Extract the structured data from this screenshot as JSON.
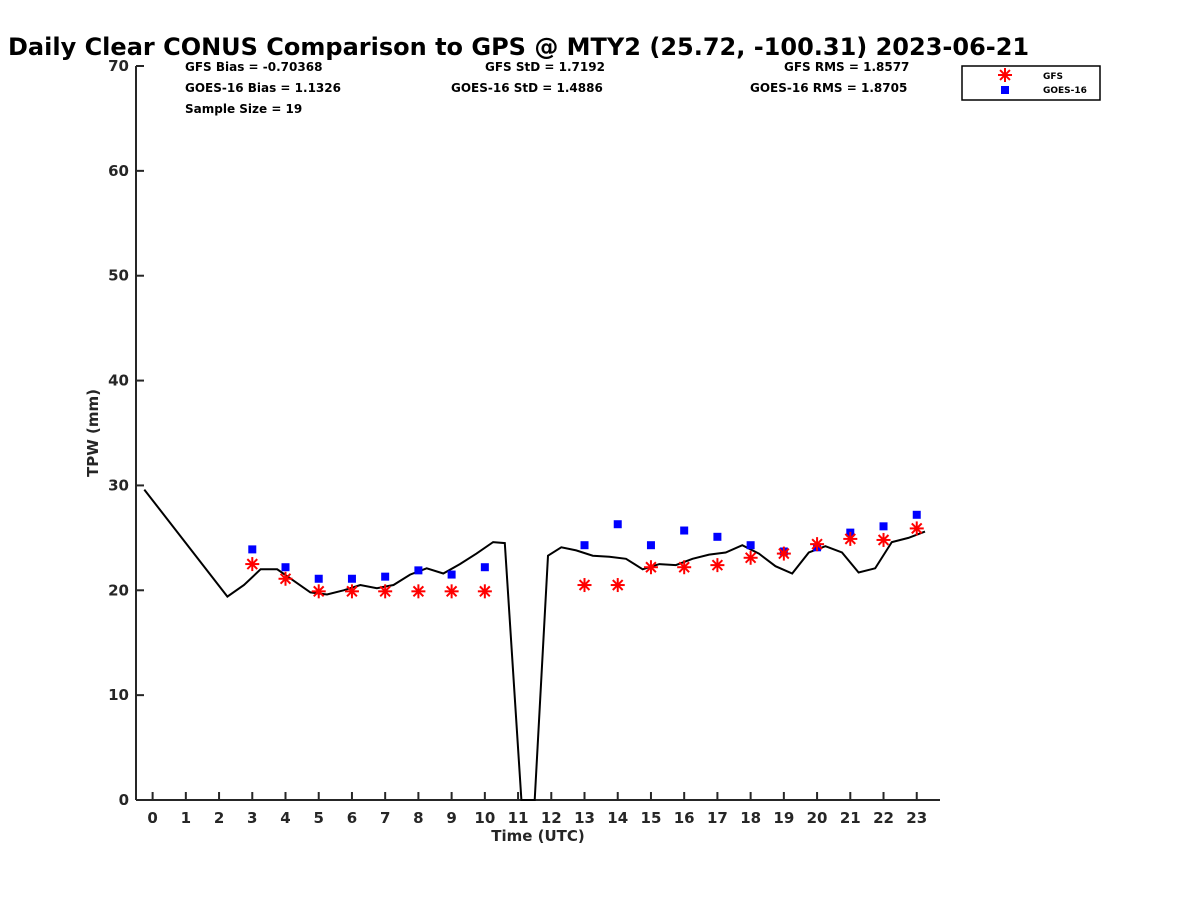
{
  "chart_data": {
    "type": "scatter",
    "title": "Daily Clear CONUS Comparison to GPS @ MTY2 (25.72, -100.31) 2023-06-21",
    "xlabel": "Time (UTC)",
    "ylabel": "TPW (mm)",
    "xlim": [
      -0.5,
      23.7
    ],
    "ylim": [
      0,
      70
    ],
    "x_ticks": [
      0,
      1,
      2,
      3,
      4,
      5,
      6,
      7,
      8,
      9,
      10,
      11,
      12,
      13,
      14,
      15,
      16,
      17,
      18,
      19,
      20,
      21,
      22,
      23
    ],
    "x_tick_labels": [
      "0",
      "1",
      "2",
      "3",
      "4",
      "5",
      "6",
      "7",
      "8",
      "9",
      "10",
      "11",
      "12",
      "13",
      "14",
      "15",
      "16",
      "17",
      "18",
      "19",
      "20",
      "21",
      "22",
      "23"
    ],
    "y_ticks": [
      0,
      10,
      20,
      30,
      40,
      50,
      60,
      70
    ],
    "y_tick_labels": [
      "0",
      "10",
      "20",
      "30",
      "40",
      "50",
      "60",
      "70"
    ],
    "grid": false,
    "legend_position": "top-right",
    "stats": {
      "gfs_bias": "GFS Bias = -0.70368",
      "gfs_std": "GFS StD = 1.7192",
      "gfs_rms": "GFS RMS = 1.8577",
      "goes_bias": "GOES-16 Bias = 1.1326",
      "goes_std": "GOES-16 StD = 1.4886",
      "goes_rms": "GOES-16 RMS = 1.8705",
      "sample_size": "Sample Size = 19"
    },
    "series": [
      {
        "name": "GFS",
        "kind": "scatter",
        "marker": "asterisk",
        "color": "#ff0000",
        "x": [
          3,
          4,
          5,
          6,
          7,
          8,
          9,
          10,
          13,
          14,
          15,
          16,
          17,
          18,
          19,
          20,
          21,
          22,
          23
        ],
        "y": [
          22.5,
          21.1,
          19.9,
          19.9,
          19.9,
          19.9,
          19.9,
          19.9,
          20.5,
          20.5,
          22.2,
          22.2,
          22.4,
          23.1,
          23.5,
          24.4,
          24.9,
          24.8,
          25.9
        ]
      },
      {
        "name": "GOES-16",
        "kind": "scatter",
        "marker": "square",
        "color": "#0000ff",
        "x": [
          3,
          4,
          5,
          6,
          7,
          8,
          9,
          10,
          13,
          14,
          15,
          16,
          17,
          18,
          19,
          20,
          21,
          22,
          23
        ],
        "y": [
          23.9,
          22.2,
          21.1,
          21.1,
          21.3,
          21.9,
          21.5,
          22.2,
          24.3,
          26.3,
          24.3,
          25.7,
          25.1,
          24.3,
          23.7,
          24.1,
          25.5,
          26.1,
          27.2
        ]
      },
      {
        "name": "GPS",
        "kind": "line",
        "color": "#000000",
        "x": [
          -0.25,
          2.25,
          2.75,
          3.25,
          3.75,
          4.25,
          4.75,
          5.25,
          5.75,
          6.25,
          6.75,
          7.25,
          7.75,
          8.25,
          8.75,
          9.25,
          9.75,
          10.25,
          10.6,
          11.1,
          11.5,
          11.9,
          12.3,
          12.75,
          13.25,
          13.75,
          14.25,
          14.75,
          15.25,
          15.75,
          16.25,
          16.75,
          17.25,
          17.75,
          18.25,
          18.75,
          19.25,
          19.75,
          20.25,
          20.75,
          21.25,
          21.75,
          22.25,
          22.75,
          23.25
        ],
        "y": [
          29.6,
          19.4,
          20.5,
          22.0,
          22.0,
          20.9,
          19.8,
          19.6,
          20.0,
          20.5,
          20.2,
          20.5,
          21.5,
          22.1,
          21.6,
          22.5,
          23.5,
          24.6,
          24.5,
          0,
          0,
          23.3,
          24.1,
          23.8,
          23.3,
          23.2,
          23.0,
          22.0,
          22.5,
          22.4,
          23.0,
          23.4,
          23.6,
          24.3,
          23.5,
          22.3,
          21.6,
          23.6,
          24.2,
          23.6,
          21.7,
          22.1,
          24.6,
          25.0,
          25.6
        ]
      }
    ]
  }
}
